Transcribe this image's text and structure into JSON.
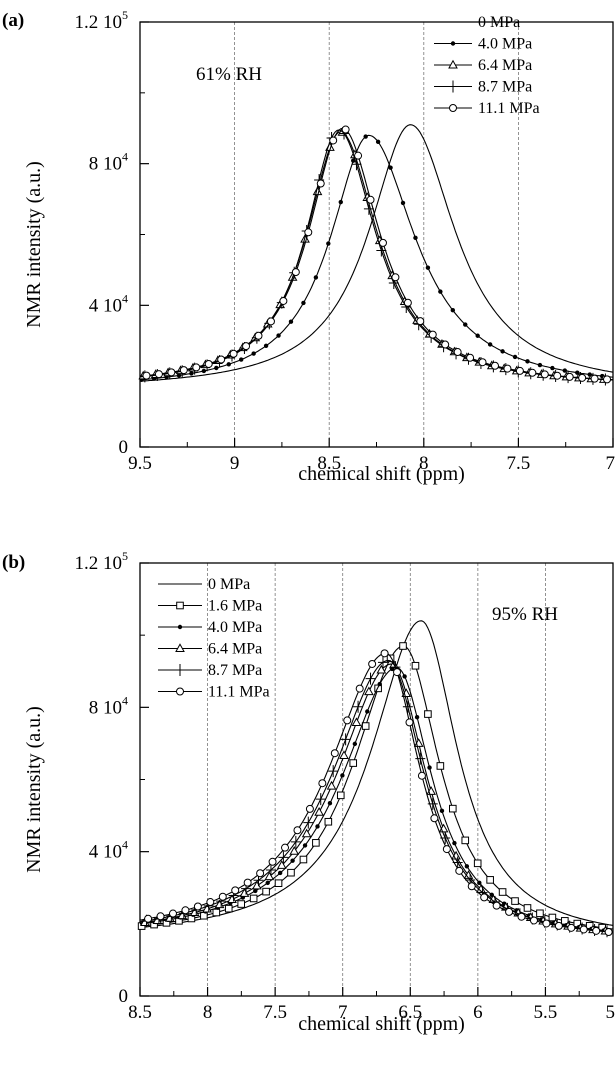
{
  "chart_data": [
    {
      "type": "line",
      "panel_label": "(a)",
      "annotation": "61% RH",
      "xlabel": "chemical shift (ppm)",
      "ylabel": "NMR intensity (a.u.)",
      "xlim": [
        9.5,
        7
      ],
      "ylim": [
        0,
        120000
      ],
      "x_ticks": [
        "9.5",
        "9",
        "8.5",
        "8",
        "7.5",
        "7"
      ],
      "y_ticks": [
        {
          "value": 0,
          "base": "0",
          "exp": ""
        },
        {
          "value": 40000,
          "base": "4 10",
          "exp": "4"
        },
        {
          "value": 80000,
          "base": "8 10",
          "exp": "4"
        },
        {
          "value": 120000,
          "base": "1.2 10",
          "exp": "5"
        }
      ],
      "gridlines_x": [
        9,
        8.5,
        8,
        7.5
      ],
      "legend_position": "top-right",
      "series": [
        {
          "name": "0 MPa",
          "marker": "none",
          "peak_x": 8.07,
          "peak_y": 91000,
          "hwhm_left": 0.27,
          "hwhm_right": 0.29,
          "base": 16000
        },
        {
          "name": "4.0 MPa",
          "marker": "dot",
          "peak_x": 8.29,
          "peak_y": 88000,
          "hwhm_left": 0.25,
          "hwhm_right": 0.3,
          "base": 16000
        },
        {
          "name": "6.4 MPa",
          "marker": "triangle",
          "peak_x": 8.44,
          "peak_y": 89000,
          "hwhm_left": 0.22,
          "hwhm_right": 0.24,
          "base": 17000
        },
        {
          "name": "8.7 MPa",
          "marker": "plus",
          "peak_x": 8.45,
          "peak_y": 89500,
          "hwhm_left": 0.21,
          "hwhm_right": 0.24,
          "base": 17000
        },
        {
          "name": "11.1 MPa",
          "marker": "circle",
          "peak_x": 8.43,
          "peak_y": 90000,
          "hwhm_left": 0.22,
          "hwhm_right": 0.24,
          "base": 17000
        }
      ]
    },
    {
      "type": "line",
      "panel_label": "(b)",
      "annotation": "95% RH",
      "xlabel": "chemical shift (ppm)",
      "ylabel": "NMR intensity (a.u.)",
      "xlim": [
        8.5,
        5
      ],
      "ylim": [
        0,
        120000
      ],
      "x_ticks": [
        "8.5",
        "8",
        "7.5",
        "7",
        "6.5",
        "6",
        "5.5",
        "5"
      ],
      "y_ticks": [
        {
          "value": 0,
          "base": "0",
          "exp": ""
        },
        {
          "value": 40000,
          "base": "4 10",
          "exp": "4"
        },
        {
          "value": 80000,
          "base": "8 10",
          "exp": "4"
        },
        {
          "value": 120000,
          "base": "1.2 10",
          "exp": "5"
        }
      ],
      "gridlines_x": [
        8,
        7.5,
        7,
        6.5,
        6,
        5.5
      ],
      "legend_position": "top-left",
      "series": [
        {
          "name": "0 MPa",
          "marker": "none",
          "peak_x": 6.42,
          "peak_y": 104000,
          "hwhm_left": 0.45,
          "hwhm_right": 0.33,
          "base": 15000
        },
        {
          "name": "1.6 MPa",
          "marker": "square",
          "peak_x": 6.55,
          "peak_y": 97000,
          "hwhm_left": 0.46,
          "hwhm_right": 0.33,
          "base": 15000
        },
        {
          "name": "4.0 MPa",
          "marker": "dot",
          "peak_x": 6.6,
          "peak_y": 91000,
          "hwhm_left": 0.5,
          "hwhm_right": 0.32,
          "base": 15000
        },
        {
          "name": "6.4 MPa",
          "marker": "triangle",
          "peak_x": 6.64,
          "peak_y": 92000,
          "hwhm_left": 0.5,
          "hwhm_right": 0.32,
          "base": 15000
        },
        {
          "name": "8.7 MPa",
          "marker": "plus",
          "peak_x": 6.66,
          "peak_y": 93000,
          "hwhm_left": 0.51,
          "hwhm_right": 0.32,
          "base": 15000
        },
        {
          "name": "11.1 MPa",
          "marker": "circle",
          "peak_x": 6.68,
          "peak_y": 95000,
          "hwhm_left": 0.52,
          "hwhm_right": 0.31,
          "base": 15000
        }
      ]
    }
  ]
}
